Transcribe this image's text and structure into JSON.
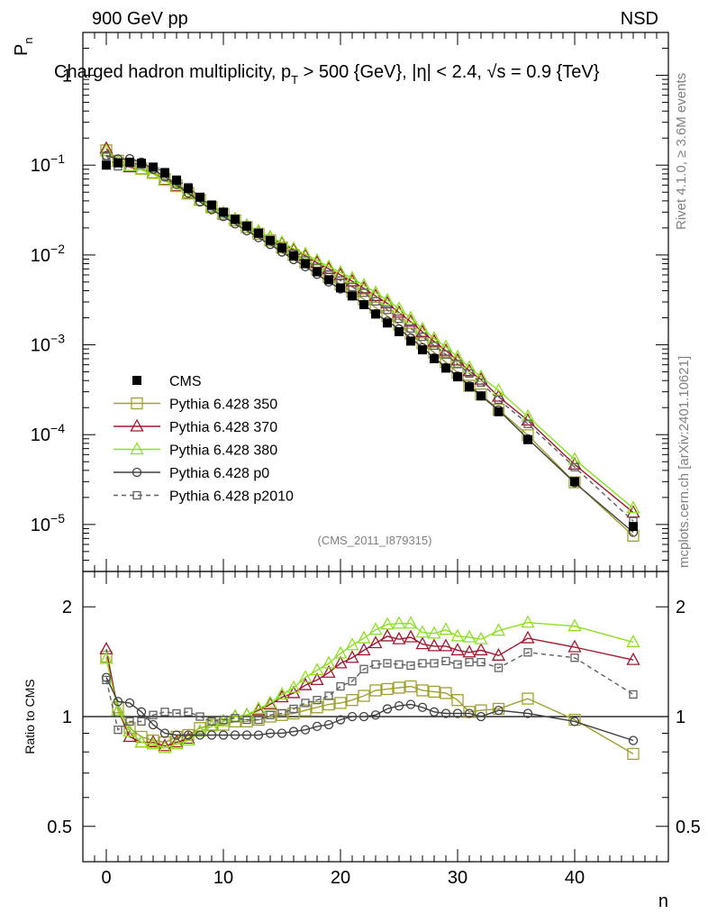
{
  "header": {
    "left": "900 GeV pp",
    "right": "NSD"
  },
  "side": {
    "rivet": "Rivet 4.1.0, ≥ 3.6M events",
    "mcplots": "mcplots.cern.ch [arXiv:2401.10621]"
  },
  "main_panel": {
    "title": "Charged hadron multiplicity, p_T > 500 {GeV}, |η| < 2.4, √s = 0.9 {TeV}",
    "ylabel": "P_n",
    "analysis_tag": "(CMS_2011_I879315)",
    "y_tick_labels": [
      "10^-5",
      "10^-4",
      "10^-3",
      "10^-2",
      "10^-1",
      "1"
    ]
  },
  "ratio_panel": {
    "ylabel": "Ratio to CMS",
    "xlabel": "n",
    "y_tick_labels": [
      "0.5",
      "1",
      "2"
    ],
    "x_tick_labels": [
      "0",
      "10",
      "20",
      "30",
      "40"
    ]
  },
  "legend": [
    {
      "label": "CMS",
      "color": "#000000",
      "marker": "filled-square",
      "dashed": false
    },
    {
      "label": "Pythia 6.428 350",
      "color": "#a0a030",
      "marker": "open-square",
      "dashed": false
    },
    {
      "label": "Pythia 6.428 370",
      "color": "#a01830",
      "marker": "open-triangle",
      "dashed": false
    },
    {
      "label": "Pythia 6.428 380",
      "color": "#8ce020",
      "marker": "open-triangle",
      "dashed": false
    },
    {
      "label": "Pythia 6.428 p0",
      "color": "#404040",
      "marker": "open-circle",
      "dashed": false
    },
    {
      "label": "Pythia 6.428 p2010",
      "color": "#606060",
      "marker": "open-square-small",
      "dashed": true
    }
  ],
  "chart_data": [
    {
      "type": "line",
      "scale": "log-y",
      "title": "Charged hadron multiplicity, pT > 500 GeV, |eta| < 2.4, sqrt(s) = 0.9 TeV",
      "xlabel": "n",
      "ylabel": "P_n",
      "xlim": [
        -2,
        48
      ],
      "ylim": [
        3e-06,
        3
      ],
      "reference": {
        "name": "CMS",
        "x": [
          0,
          1,
          2,
          3,
          4,
          5,
          6,
          7,
          8,
          9,
          10,
          11,
          12,
          13,
          14,
          15,
          16,
          17,
          18,
          19,
          20,
          21,
          22,
          23,
          24,
          25,
          26,
          27,
          28,
          29,
          30,
          31,
          32,
          33.5,
          36,
          40,
          45
        ],
        "y": [
          0.1,
          0.106,
          0.108,
          0.105,
          0.095,
          0.082,
          0.068,
          0.055,
          0.044,
          0.036,
          0.03,
          0.025,
          0.021,
          0.0175,
          0.0145,
          0.012,
          0.0098,
          0.008,
          0.0065,
          0.0053,
          0.0043,
          0.0035,
          0.0028,
          0.0022,
          0.00175,
          0.0014,
          0.0011,
          0.00088,
          0.0007,
          0.00055,
          0.00044,
          0.00034,
          0.00027,
          0.00018,
          8.8e-05,
          3e-05,
          9.5e-06
        ]
      },
      "series": [
        {
          "name": "Pythia 6.428 350",
          "y": [
            0.146,
            0.112,
            0.1,
            0.092,
            0.082,
            0.07,
            0.06,
            0.049,
            0.041,
            0.034,
            0.0285,
            0.0243,
            0.0204,
            0.0172,
            0.0145,
            0.0121,
            0.01,
            0.0083,
            0.0069,
            0.0057,
            0.0047,
            0.0039,
            0.0032,
            0.0026,
            0.00209,
            0.00168,
            0.00133,
            0.00104,
            0.00082,
            0.00064,
            0.00049,
            0.00035,
            0.00028,
            0.00019,
            9.85e-05,
            2.95e-05,
            7.5e-06
          ]
        },
        {
          "name": "Pythia 6.428 370",
          "y": [
            0.153,
            0.11,
            0.095,
            0.089,
            0.081,
            0.068,
            0.058,
            0.048,
            0.04,
            0.034,
            0.0291,
            0.025,
            0.0212,
            0.0182,
            0.0157,
            0.0135,
            0.0114,
            0.0098,
            0.0082,
            0.007,
            0.006,
            0.0051,
            0.00426,
            0.0035,
            0.0029,
            0.00228,
            0.00181,
            0.00139,
            0.00109,
            0.00086,
            0.00067,
            0.00051,
            0.00041,
            0.000265,
            0.000144,
            4.65e-05,
            1.36e-05
          ]
        },
        {
          "name": "Pythia 6.428 380",
          "y": [
            0.144,
            0.11,
            0.098,
            0.089,
            0.08,
            0.067,
            0.057,
            0.047,
            0.04,
            0.034,
            0.0291,
            0.025,
            0.0212,
            0.0184,
            0.0158,
            0.0138,
            0.0118,
            0.0102,
            0.0087,
            0.0074,
            0.0064,
            0.0055,
            0.0046,
            0.0038,
            0.00314,
            0.00252,
            0.00198,
            0.0015,
            0.00118,
            0.00095,
            0.00073,
            0.00056,
            0.00044,
            0.00031,
            0.000159,
            5.3e-05,
            1.52e-05
          ]
        },
        {
          "name": "Pythia 6.428 p0",
          "y": [
            0.128,
            0.117,
            0.118,
            0.108,
            0.09,
            0.074,
            0.061,
            0.049,
            0.039,
            0.032,
            0.0268,
            0.0222,
            0.0186,
            0.0156,
            0.0131,
            0.0108,
            0.0089,
            0.0074,
            0.0061,
            0.005,
            0.0042,
            0.0035,
            0.0028,
            0.00222,
            0.00183,
            0.0015,
            0.00119,
            0.00093,
            0.00072,
            0.00056,
            0.00045,
            0.00035,
            0.00027,
            0.000188,
            9e-05,
            2.92e-05,
            8.2e-06
          ]
        },
        {
          "name": "Pythia 6.428 p2010",
          "y": [
            0.126,
            0.097,
            0.105,
            0.102,
            0.096,
            0.084,
            0.069,
            0.057,
            0.044,
            0.035,
            0.0295,
            0.0248,
            0.0206,
            0.0172,
            0.0146,
            0.0122,
            0.0103,
            0.0087,
            0.0072,
            0.0061,
            0.0052,
            0.0044,
            0.0038,
            0.00305,
            0.00245,
            0.00195,
            0.00152,
            0.00123,
            0.00098,
            0.00078,
            0.00061,
            0.00048,
            0.00038,
            0.000245,
            0.000132,
            4.35e-05,
            1.09e-05
          ]
        }
      ]
    },
    {
      "type": "line",
      "scale": "log-y",
      "title": "Ratio to CMS",
      "xlabel": "n",
      "ylabel": "Ratio to CMS",
      "xlim": [
        -2,
        48
      ],
      "ylim": [
        0.4,
        2.5
      ],
      "x": [
        0,
        1,
        2,
        3,
        4,
        5,
        6,
        7,
        8,
        9,
        10,
        11,
        12,
        13,
        14,
        15,
        16,
        17,
        18,
        19,
        20,
        21,
        22,
        23,
        24,
        25,
        26,
        27,
        28,
        29,
        30,
        31,
        32,
        33.5,
        36,
        40,
        45
      ],
      "series": [
        {
          "name": "Pythia 6.428 350",
          "values": [
            1.46,
            1.06,
            0.93,
            0.88,
            0.86,
            0.85,
            0.88,
            0.89,
            0.93,
            0.95,
            0.95,
            0.97,
            0.97,
            0.98,
            1.0,
            1.01,
            1.02,
            1.04,
            1.06,
            1.08,
            1.09,
            1.11,
            1.14,
            1.18,
            1.19,
            1.2,
            1.21,
            1.18,
            1.17,
            1.16,
            1.11,
            1.03,
            1.04,
            1.05,
            1.12,
            0.98,
            0.79
          ]
        },
        {
          "name": "Pythia 6.428 370",
          "values": [
            1.53,
            1.04,
            0.88,
            0.85,
            0.85,
            0.83,
            0.85,
            0.87,
            0.91,
            0.94,
            0.97,
            1.0,
            1.01,
            1.04,
            1.08,
            1.13,
            1.16,
            1.22,
            1.26,
            1.32,
            1.4,
            1.45,
            1.52,
            1.59,
            1.66,
            1.63,
            1.65,
            1.58,
            1.56,
            1.56,
            1.52,
            1.5,
            1.52,
            1.47,
            1.64,
            1.55,
            1.43
          ]
        },
        {
          "name": "Pythia 6.428 380",
          "values": [
            1.44,
            1.04,
            0.91,
            0.85,
            0.84,
            0.82,
            0.84,
            0.86,
            0.91,
            0.94,
            0.97,
            1.0,
            1.01,
            1.05,
            1.09,
            1.15,
            1.2,
            1.28,
            1.34,
            1.4,
            1.49,
            1.57,
            1.64,
            1.73,
            1.79,
            1.8,
            1.8,
            1.7,
            1.69,
            1.73,
            1.66,
            1.65,
            1.63,
            1.72,
            1.81,
            1.77,
            1.6
          ]
        },
        {
          "name": "Pythia 6.428 p0",
          "values": [
            1.28,
            1.1,
            1.09,
            1.03,
            0.95,
            0.9,
            0.89,
            0.89,
            0.89,
            0.89,
            0.89,
            0.89,
            0.89,
            0.89,
            0.9,
            0.9,
            0.91,
            0.92,
            0.94,
            0.95,
            0.98,
            1.0,
            1.0,
            1.01,
            1.05,
            1.07,
            1.08,
            1.06,
            1.03,
            1.02,
            1.02,
            1.02,
            1.0,
            1.04,
            1.02,
            0.97,
            0.86
          ]
        },
        {
          "name": "Pythia 6.428 p2010",
          "values": [
            1.26,
            0.92,
            0.97,
            0.97,
            1.01,
            1.03,
            1.02,
            1.03,
            1.0,
            0.97,
            0.98,
            0.99,
            0.98,
            0.98,
            1.01,
            1.02,
            1.05,
            1.09,
            1.11,
            1.14,
            1.21,
            1.25,
            1.35,
            1.39,
            1.4,
            1.39,
            1.38,
            1.4,
            1.4,
            1.42,
            1.39,
            1.41,
            1.41,
            1.36,
            1.5,
            1.45,
            1.15
          ]
        }
      ]
    }
  ]
}
